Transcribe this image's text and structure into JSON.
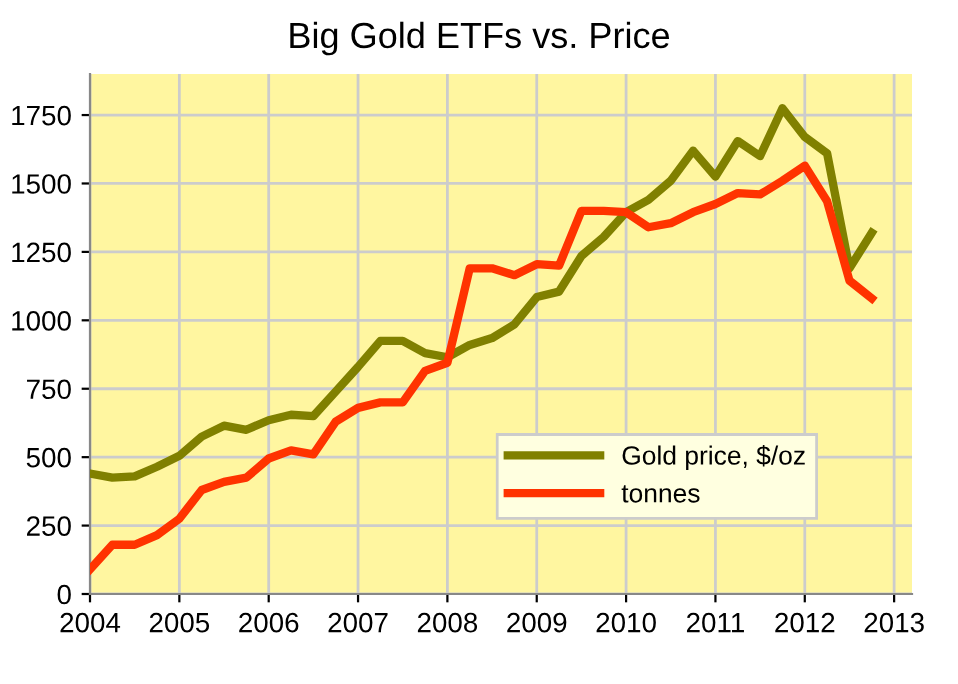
{
  "chart_data": {
    "type": "line",
    "title": "Big Gold ETFs vs. Price",
    "x": [
      2004,
      2004.25,
      2004.5,
      2004.75,
      2005,
      2005.25,
      2005.5,
      2005.75,
      2006,
      2006.25,
      2006.5,
      2006.75,
      2007,
      2007.25,
      2007.5,
      2007.75,
      2008,
      2008.25,
      2008.5,
      2008.75,
      2009,
      2009.25,
      2009.5,
      2009.75,
      2010,
      2010.25,
      2010.5,
      2010.75,
      2011,
      2011.25,
      2011.5,
      2011.75,
      2012,
      2012.25,
      2012.5,
      2012.75
    ],
    "series": [
      {
        "name": "Gold price, $/oz",
        "color": "#808000",
        "values": [
          440,
          425,
          430,
          465,
          505,
          575,
          615,
          600,
          635,
          655,
          650,
          740,
          830,
          925,
          925,
          880,
          865,
          910,
          935,
          985,
          1085,
          1105,
          1235,
          1305,
          1395,
          1440,
          1510,
          1620,
          1525,
          1655,
          1600,
          1775,
          1670,
          1610,
          1190,
          1320
        ]
      },
      {
        "name": "tonnes",
        "color": "#ff3300",
        "values": [
          90,
          180,
          180,
          215,
          275,
          380,
          410,
          425,
          495,
          525,
          510,
          630,
          680,
          700,
          700,
          815,
          845,
          1190,
          1190,
          1165,
          1205,
          1200,
          1400,
          1400,
          1395,
          1340,
          1355,
          1395,
          1425,
          1465,
          1460,
          1510,
          1565,
          1435,
          1145,
          1080
        ]
      }
    ],
    "xlim": [
      2004,
      2013.2
    ],
    "xticks": [
      2004,
      2005,
      2006,
      2007,
      2008,
      2009,
      2010,
      2011,
      2012,
      2013
    ],
    "ylim": [
      0,
      1900
    ],
    "yticks": [
      0,
      250,
      500,
      750,
      1000,
      1250,
      1500,
      1750
    ],
    "grid": true,
    "legend": "bottom right",
    "marker": "none",
    "line_style": "solid"
  }
}
